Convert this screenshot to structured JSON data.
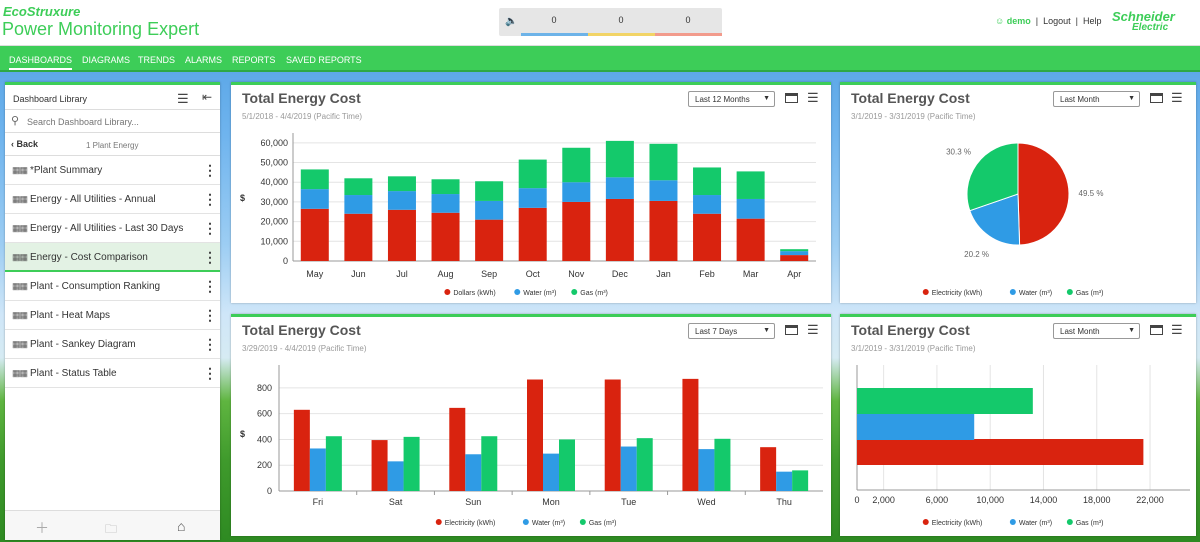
{
  "brand": {
    "eco": "EcoStruxure",
    "product": "Power Monitoring Expert"
  },
  "alarms": {
    "counts": [
      "0",
      "0",
      "0"
    ],
    "colors": [
      "#6db3e8",
      "#f2d466",
      "#f29b8c"
    ]
  },
  "user": {
    "name": "demo",
    "logout": "Logout",
    "help": "Help",
    "logo1": "Schneider",
    "logo2": "Electric"
  },
  "nav": [
    "DASHBOARDS",
    "DIAGRAMS",
    "TRENDS",
    "ALARMS",
    "REPORTS",
    "SAVED REPORTS"
  ],
  "library": {
    "title": "Dashboard Library",
    "search_placeholder": "Search Dashboard Library...",
    "back": "Back",
    "folder": "1 Plant Energy",
    "items": [
      "*Plant Summary",
      "Energy - All Utilities - Annual",
      "Energy - All Utilities - Last 30 Days",
      "Energy - Cost Comparison",
      "Plant - Consumption Ranking",
      "Plant - Heat Maps",
      "Plant - Sankey Diagram",
      "Plant - Status Table"
    ],
    "selected_index": 3,
    "footer_icons": [
      "add-icon",
      "new-folder-icon",
      "home-icon"
    ]
  },
  "colors": {
    "electricity": "#d9230f",
    "water": "#2f9be5",
    "gas": "#14c96b",
    "accent": "#3dcd58"
  },
  "panels": [
    {
      "title": "Total Energy Cost",
      "range": "Last 12 Months",
      "date": "5/1/2018 - 4/4/2019 (Pacific Time)"
    },
    {
      "title": "Total Energy Cost",
      "range": "Last Month",
      "date": "3/1/2019 - 3/31/2019 (Pacific Time)"
    },
    {
      "title": "Total Energy Cost",
      "range": "Last 7 Days",
      "date": "3/29/2019 - 4/4/2019 (Pacific Time)"
    },
    {
      "title": "Total Energy Cost",
      "range": "Last Month",
      "date": "3/1/2019 - 3/31/2019 (Pacific Time)"
    }
  ],
  "chart_data": [
    {
      "type": "bar",
      "stacked": true,
      "ylabel": "$",
      "ylim": [
        0,
        65000
      ],
      "yticks": [
        0,
        10000,
        20000,
        30000,
        40000,
        50000,
        60000
      ],
      "ytick_labels": [
        "0",
        "10,000",
        "20,000",
        "30,000",
        "40,000",
        "50,000",
        "60,000"
      ],
      "categories": [
        "May",
        "Jun",
        "Jul",
        "Aug",
        "Sep",
        "Oct",
        "Nov",
        "Dec",
        "Jan",
        "Feb",
        "Mar",
        "Apr"
      ],
      "series": [
        {
          "name": "Dollars (kWh)",
          "values": [
            26500,
            24000,
            26000,
            24500,
            21000,
            27000,
            30000,
            31500,
            30500,
            24000,
            21500,
            3000
          ]
        },
        {
          "name": "Water (m³)",
          "values": [
            10000,
            9500,
            9500,
            9500,
            9500,
            10000,
            10000,
            11000,
            10500,
            9500,
            10000,
            2000
          ]
        },
        {
          "name": "Gas (m³)",
          "values": [
            10000,
            8500,
            7500,
            7500,
            10000,
            14500,
            17500,
            18500,
            18500,
            14000,
            14000,
            1000
          ]
        }
      ],
      "legend": "bottom"
    },
    {
      "type": "pie",
      "labels": [
        "Electricity (kWh)",
        "Water (m³)",
        "Gas (m³)"
      ],
      "values": [
        49.5,
        20.2,
        30.3
      ],
      "value_labels": [
        "49.5 %",
        "20.2 %",
        "30.3 %"
      ],
      "legend": "bottom"
    },
    {
      "type": "bar",
      "ylabel": "$",
      "ylim": [
        0,
        900
      ],
      "yticks": [
        0,
        200,
        400,
        600,
        800
      ],
      "ytick_labels": [
        "0",
        "200",
        "400",
        "600",
        "800"
      ],
      "categories": [
        "Fri",
        "Sat",
        "Sun",
        "Mon",
        "Tue",
        "Wed",
        "Thu"
      ],
      "series": [
        {
          "name": "Electricity (kWh)",
          "values": [
            630,
            395,
            645,
            865,
            865,
            870,
            340
          ]
        },
        {
          "name": "Water (m³)",
          "values": [
            330,
            230,
            285,
            290,
            345,
            325,
            150
          ]
        },
        {
          "name": "Gas (m³)",
          "values": [
            425,
            420,
            425,
            400,
            410,
            405,
            160
          ]
        }
      ],
      "legend": "bottom"
    },
    {
      "type": "bar",
      "orientation": "horizontal",
      "xlim": [
        0,
        25000
      ],
      "xticks": [
        0,
        2000,
        6000,
        10000,
        14000,
        18000,
        22000
      ],
      "xtick_labels": [
        "0",
        "2,000",
        "6,000",
        "10,000",
        "14,000",
        "18,000",
        "22,000"
      ],
      "series": [
        {
          "name": "Electricity (kWh)",
          "values": [
            21500
          ]
        },
        {
          "name": "Water (m³)",
          "values": [
            8800
          ]
        },
        {
          "name": "Gas (m³)",
          "values": [
            13200
          ]
        }
      ],
      "legend": "bottom"
    }
  ]
}
